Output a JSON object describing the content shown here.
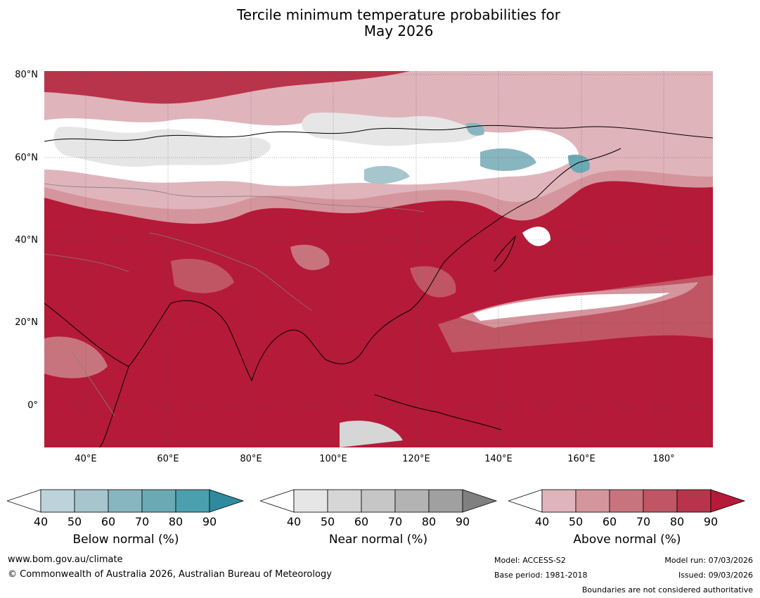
{
  "title_line1": "Tercile minimum temperature probabilities for",
  "title_line2": "May 2026",
  "lat_labels": [
    "80°N",
    "60°N",
    "40°N",
    "20°N",
    "0°"
  ],
  "lon_labels": [
    "40°E",
    "60°E",
    "80°E",
    "100°E",
    "120°E",
    "140°E",
    "160°E",
    "180°"
  ],
  "colorbars": [
    {
      "label": "Below normal (%)",
      "ticks": [
        "40",
        "50",
        "60",
        "70",
        "80",
        "90"
      ],
      "colors": [
        "#bdd3db",
        "#a6c5cc",
        "#88b6c0",
        "#6aaab5",
        "#4aa0ae",
        "#2f8a9f"
      ]
    },
    {
      "label": "Near normal (%)",
      "ticks": [
        "40",
        "50",
        "60",
        "70",
        "80",
        "90"
      ],
      "colors": [
        "#e6e6e6",
        "#d6d6d6",
        "#c6c6c6",
        "#b3b3b3",
        "#a0a0a0",
        "#808080"
      ]
    },
    {
      "label": "Above normal (%)",
      "ticks": [
        "40",
        "50",
        "60",
        "70",
        "80",
        "90"
      ],
      "colors": [
        "#e0b4bb",
        "#d5959d",
        "#c8747f",
        "#c05663",
        "#b8344a",
        "#b51a38"
      ]
    }
  ],
  "footer": {
    "website": "www.bom.gov.au/climate",
    "copyright": "© Commonwealth of Australia 2026, Australian Bureau of Meteorology",
    "model": "Model: ACCESS-S2",
    "base_period": "Base period: 1981-2018",
    "model_run": "Model run: 07/03/2026",
    "issued": "Issued: 09/03/2026",
    "disclaimer": "Boundaries are not considered authoritative"
  }
}
